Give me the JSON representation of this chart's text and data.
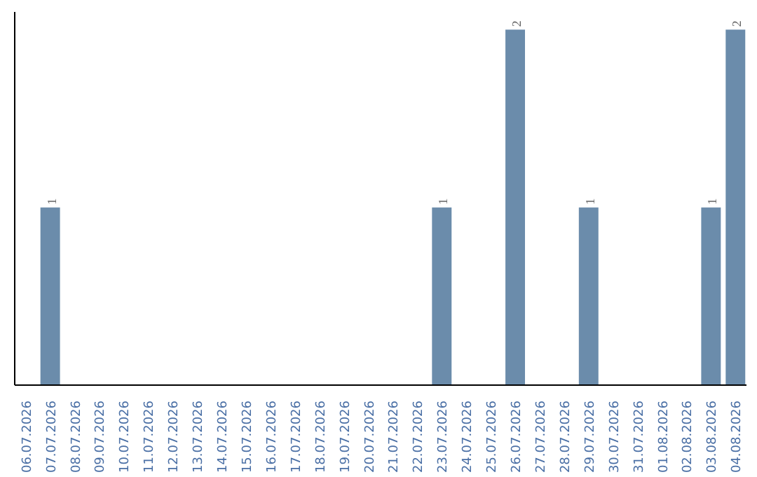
{
  "chart_data": {
    "type": "bar",
    "categories": [
      "06.07.2026",
      "07.07.2026",
      "08.07.2026",
      "09.07.2026",
      "10.07.2026",
      "11.07.2026",
      "12.07.2026",
      "13.07.2026",
      "14.07.2026",
      "15.07.2026",
      "16.07.2026",
      "17.07.2026",
      "18.07.2026",
      "19.07.2026",
      "20.07.2026",
      "21.07.2026",
      "22.07.2026",
      "23.07.2026",
      "24.07.2026",
      "25.07.2026",
      "26.07.2026",
      "27.07.2026",
      "28.07.2026",
      "29.07.2026",
      "30.07.2026",
      "31.07.2026",
      "01.08.2026",
      "02.08.2026",
      "03.08.2026",
      "04.08.2026"
    ],
    "values": [
      0,
      1,
      0,
      0,
      0,
      0,
      0,
      0,
      0,
      0,
      0,
      0,
      0,
      0,
      0,
      0,
      0,
      1,
      0,
      0,
      2,
      0,
      0,
      1,
      0,
      0,
      0,
      0,
      1,
      2
    ],
    "value_labels": [
      null,
      "1",
      null,
      null,
      null,
      null,
      null,
      null,
      null,
      null,
      null,
      null,
      null,
      null,
      null,
      null,
      null,
      "1",
      null,
      null,
      "2",
      null,
      null,
      "1",
      null,
      null,
      null,
      null,
      "1",
      "2"
    ],
    "color": "#6b8cab",
    "grid": false,
    "tick_labels": "x"
  }
}
